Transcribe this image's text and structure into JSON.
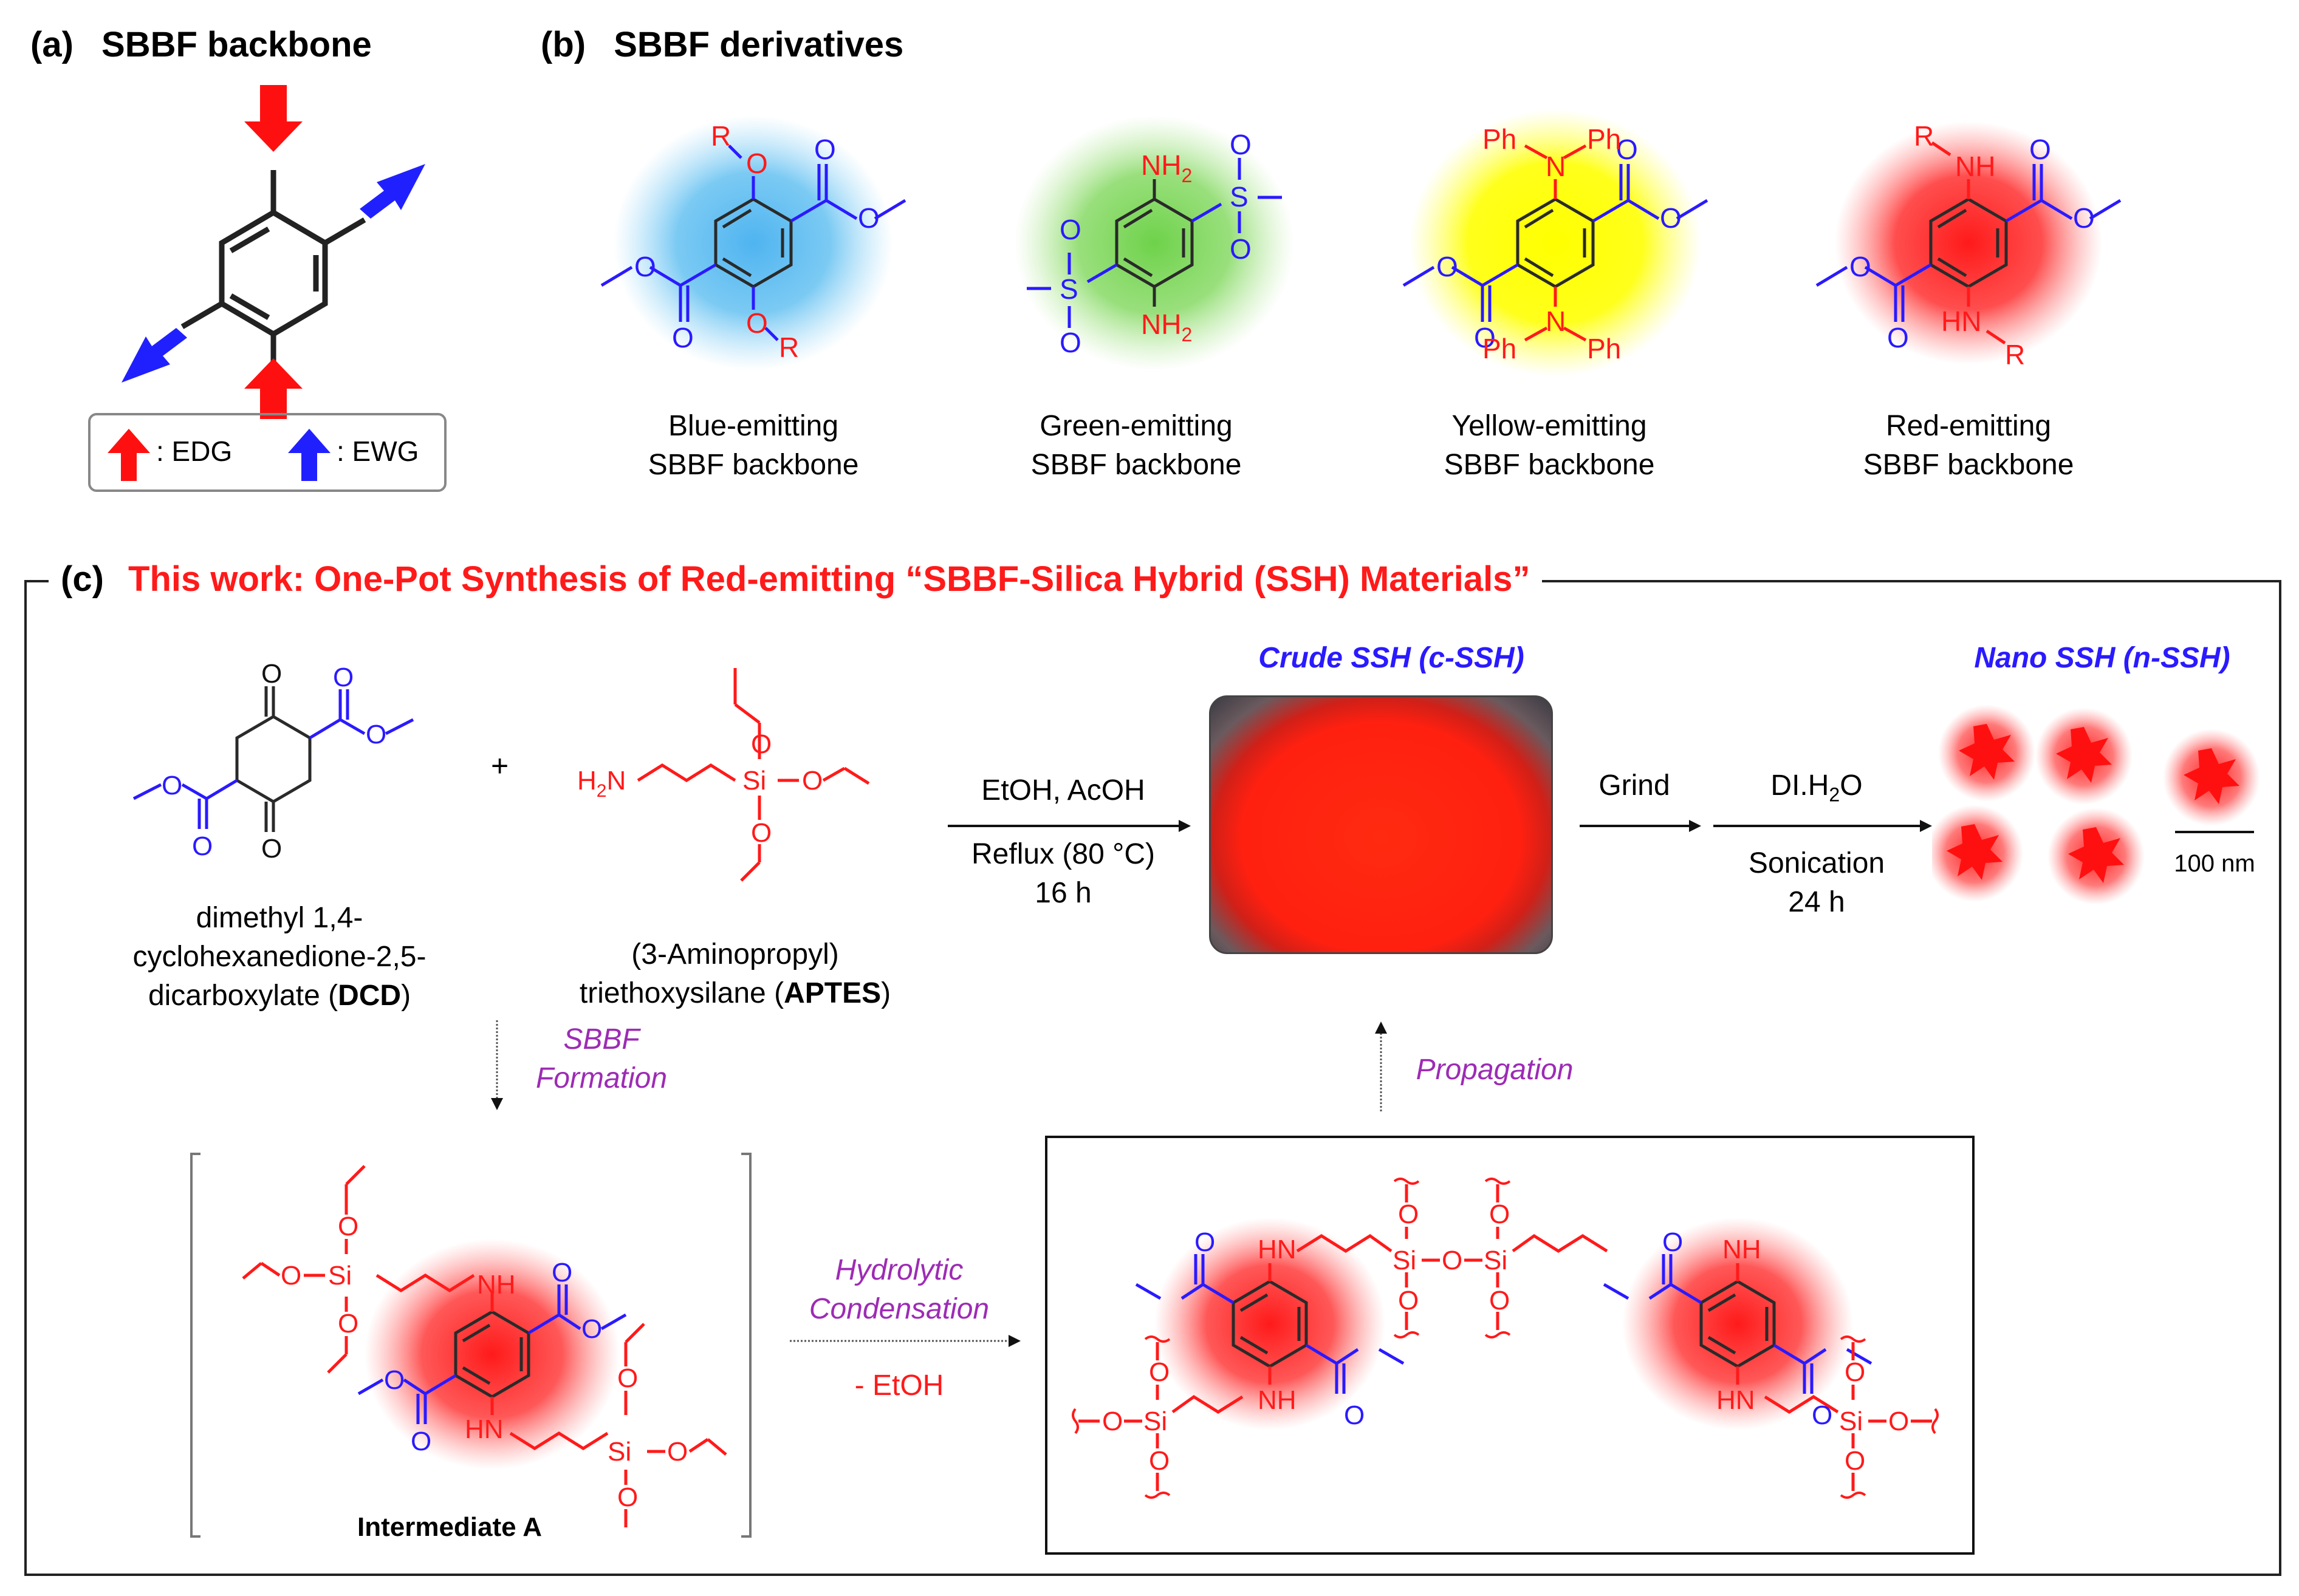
{
  "panel_a": {
    "label": "(a)",
    "title": "SBBF backbone",
    "legend": {
      "edg": ": EDG",
      "ewg": ": EWG"
    }
  },
  "panel_b": {
    "label": "(b)",
    "title": "SBBF derivatives",
    "derivatives": [
      {
        "line1": "Blue-emitting",
        "line2": "SBBF backbone",
        "glow": "#4fb4f0",
        "atoms": {
          "r_top": "R",
          "r_bot": "R",
          "o": "O"
        }
      },
      {
        "line1": "Green-emitting",
        "line2": "SBBF backbone",
        "glow": "#6ed24a",
        "atoms": {
          "nh2": "NH",
          "sub": "2",
          "s": "S",
          "o": "O"
        }
      },
      {
        "line1": "Yellow-emitting",
        "line2": "SBBF backbone",
        "glow": "#ffff00",
        "atoms": {
          "ph": "Ph",
          "n": "N",
          "o": "O"
        }
      },
      {
        "line1": "Red-emitting",
        "line2": "SBBF backbone",
        "glow": "#ff2020",
        "atoms": {
          "r": "R",
          "nh": "NH",
          "hn": "HN",
          "o": "O"
        }
      }
    ]
  },
  "panel_c": {
    "label": "(c)",
    "title": "This work: One-Pot Synthesis of Red-emitting “SBBF-Silica Hybrid (SSH) Materials”",
    "dcd": {
      "line1": "dimethyl 1,4-",
      "line2": "cyclohexanedione-2,5-",
      "line3_pre": "dicarboxylate (",
      "abbr": "DCD",
      "line3_post": ")"
    },
    "plus": "+",
    "aptes": {
      "line1": "(3-Aminopropyl)",
      "line2_pre": "triethoxysilane (",
      "abbr": "APTES",
      "line2_post": ")",
      "atoms": {
        "h2n_h": "H",
        "h2n_2": "2",
        "h2n_n": "N",
        "si": "Si",
        "o": "O"
      }
    },
    "reaction1": {
      "above": "EtOH, AcOH",
      "below1": "Reflux (80 °C)",
      "below2": "16 h"
    },
    "crude": {
      "title": "Crude SSH (c-SSH)",
      "photo_color": "#ff2a10"
    },
    "grind": "Grind",
    "reaction2": {
      "above_pre": "DI.H",
      "above_sub": "2",
      "above_post": "O",
      "below1": "Sonication",
      "below2": "24 h"
    },
    "nano": {
      "title": "Nano SSH (n-SSH)",
      "scale": "100 nm"
    },
    "sbbf_formation": {
      "line1": "SBBF",
      "line2": "Formation"
    },
    "intermediate": {
      "label": "Intermediate A",
      "atoms": {
        "nh": "NH",
        "hn": "HN",
        "o": "O",
        "si": "Si"
      }
    },
    "hydrolytic": {
      "line1": "Hydrolytic",
      "line2": "Condensation",
      "minus": "- EtOH"
    },
    "propagation": "Propagation",
    "polymer": {
      "atoms": {
        "hn": "HN",
        "nh": "NH",
        "o": "O",
        "si": "Si"
      }
    },
    "colors": {
      "red": "#ff1a1a",
      "blue": "#2a1aff",
      "purple": "#9d2bb5"
    }
  }
}
